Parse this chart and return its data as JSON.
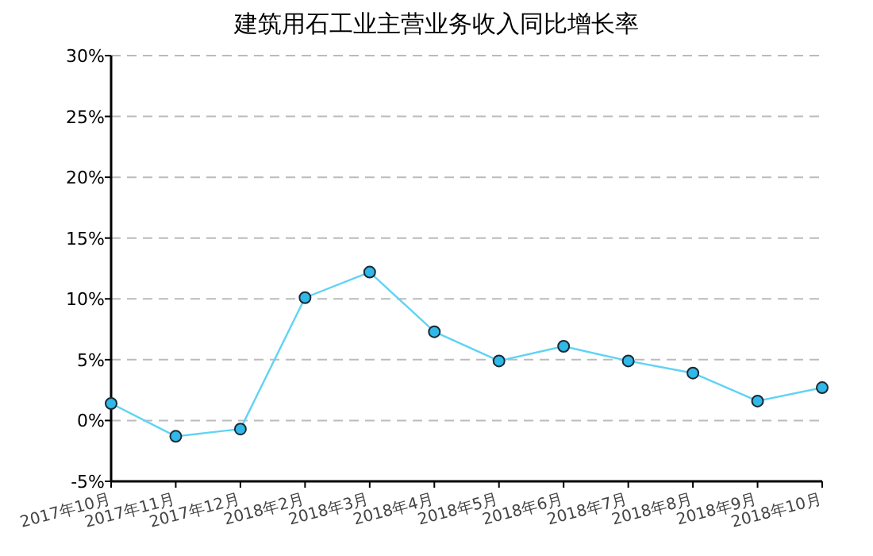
{
  "chart_data": {
    "type": "line",
    "title": "建筑用石工业主营业务收入同比增长率",
    "categories": [
      "2017年10月",
      "2017年11月",
      "2017年12月",
      "2018年2月",
      "2018年3月",
      "2018年4月",
      "2018年5月",
      "2018年6月",
      "2018年7月",
      "2018年8月",
      "2018年9月",
      "2018年10月"
    ],
    "series": [
      {
        "color": "#5fd3f5",
        "values": [
          1.4,
          -1.3,
          -0.7,
          10.1,
          12.2,
          7.3,
          4.9,
          6.1,
          4.9,
          3.9,
          1.6,
          2.7
        ]
      }
    ],
    "ylim": [
      -5,
      30
    ],
    "yticks": [
      {
        "value": -5,
        "label": "-5%"
      },
      {
        "value": 0,
        "label": "0%"
      },
      {
        "value": 5,
        "label": "5%"
      },
      {
        "value": 10,
        "label": "10%"
      },
      {
        "value": 15,
        "label": "15%"
      },
      {
        "value": 20,
        "label": "20%"
      },
      {
        "value": 25,
        "label": "25%"
      },
      {
        "value": 30,
        "label": "30%"
      }
    ],
    "grid": "y",
    "marker": "circle",
    "line_style": "solid"
  }
}
